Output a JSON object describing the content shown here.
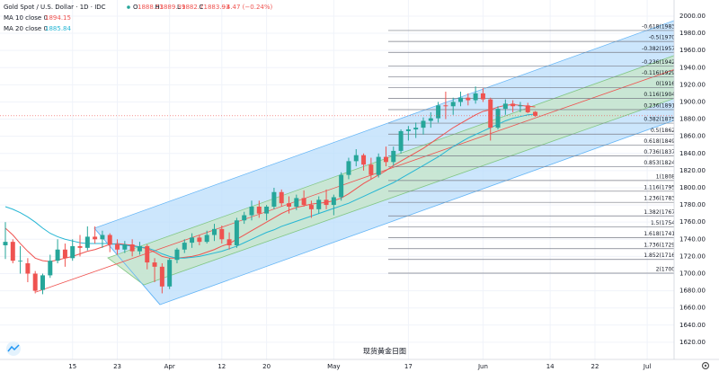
{
  "chart_data": {
    "type": "candlestick",
    "title": "Gold Spot / U.S. Dollar · 1D · IDC",
    "ohlc_labels": [
      "O",
      "H",
      "L",
      "C"
    ],
    "change": "−4.47 (−0.24%)",
    "up_color": "#26a69a",
    "down_color": "#ef5350",
    "ohlc": [
      [
        1733,
        1760,
        1717,
        1737
      ],
      [
        1737,
        1740,
        1712,
        1715
      ],
      [
        1715,
        1732,
        1700,
        1715
      ],
      [
        1712,
        1718,
        1690,
        1700
      ],
      [
        1700,
        1703,
        1677,
        1680
      ],
      [
        1681,
        1700,
        1676,
        1698
      ],
      [
        1698,
        1722,
        1695,
        1715
      ],
      [
        1715,
        1740,
        1712,
        1728
      ],
      [
        1728,
        1735,
        1708,
        1718
      ],
      [
        1718,
        1740,
        1715,
        1732
      ],
      [
        1732,
        1745,
        1720,
        1730
      ],
      [
        1730,
        1755,
        1727,
        1743
      ],
      [
        1743,
        1755,
        1735,
        1740
      ],
      [
        1740,
        1750,
        1730,
        1745
      ],
      [
        1745,
        1747,
        1725,
        1734
      ],
      [
        1734,
        1740,
        1722,
        1728
      ],
      [
        1728,
        1738,
        1724,
        1734
      ],
      [
        1734,
        1740,
        1720,
        1726
      ],
      [
        1726,
        1737,
        1722,
        1732
      ],
      [
        1732,
        1734,
        1705,
        1713
      ],
      [
        1713,
        1718,
        1690,
        1708
      ],
      [
        1708,
        1712,
        1677,
        1685
      ],
      [
        1685,
        1718,
        1682,
        1716
      ],
      [
        1716,
        1730,
        1712,
        1728
      ],
      [
        1728,
        1740,
        1724,
        1736
      ],
      [
        1736,
        1747,
        1730,
        1742
      ],
      [
        1742,
        1745,
        1733,
        1737
      ],
      [
        1737,
        1750,
        1735,
        1745
      ],
      [
        1745,
        1758,
        1738,
        1752
      ],
      [
        1752,
        1756,
        1735,
        1740
      ],
      [
        1740,
        1748,
        1728,
        1733
      ],
      [
        1733,
        1765,
        1730,
        1762
      ],
      [
        1762,
        1772,
        1758,
        1768
      ],
      [
        1768,
        1785,
        1762,
        1778
      ],
      [
        1778,
        1785,
        1765,
        1770
      ],
      [
        1770,
        1780,
        1762,
        1778
      ],
      [
        1778,
        1800,
        1775,
        1795
      ],
      [
        1795,
        1798,
        1778,
        1782
      ],
      [
        1782,
        1790,
        1770,
        1778
      ],
      [
        1778,
        1792,
        1774,
        1788
      ],
      [
        1788,
        1797,
        1778,
        1780
      ],
      [
        1780,
        1785,
        1765,
        1775
      ],
      [
        1775,
        1790,
        1770,
        1786
      ],
      [
        1786,
        1798,
        1775,
        1780
      ],
      [
        1780,
        1792,
        1768,
        1789
      ],
      [
        1789,
        1818,
        1785,
        1815
      ],
      [
        1815,
        1835,
        1810,
        1831
      ],
      [
        1831,
        1845,
        1825,
        1838
      ],
      [
        1838,
        1840,
        1820,
        1827
      ],
      [
        1827,
        1835,
        1810,
        1815
      ],
      [
        1815,
        1840,
        1812,
        1836
      ],
      [
        1836,
        1848,
        1825,
        1830
      ],
      [
        1830,
        1848,
        1826,
        1843
      ],
      [
        1843,
        1868,
        1840,
        1866
      ],
      [
        1866,
        1872,
        1855,
        1868
      ],
      [
        1868,
        1876,
        1858,
        1870
      ],
      [
        1870,
        1882,
        1862,
        1878
      ],
      [
        1878,
        1888,
        1870,
        1881
      ],
      [
        1881,
        1900,
        1876,
        1896
      ],
      [
        1896,
        1912,
        1880,
        1895
      ],
      [
        1895,
        1905,
        1885,
        1900
      ],
      [
        1900,
        1912,
        1895,
        1905
      ],
      [
        1905,
        1910,
        1896,
        1902
      ],
      [
        1902,
        1918,
        1898,
        1910
      ],
      [
        1910,
        1916,
        1900,
        1903
      ],
      [
        1903,
        1905,
        1855,
        1870
      ],
      [
        1870,
        1895,
        1868,
        1892
      ],
      [
        1892,
        1903,
        1885,
        1898
      ],
      [
        1898,
        1902,
        1888,
        1895
      ],
      [
        1895,
        1900,
        1888,
        1896
      ],
      [
        1896,
        1899,
        1887,
        1888
      ],
      [
        1888.53,
        1889.39,
        1882.7,
        1883.93
      ]
    ],
    "series": [
      {
        "name": "MA 10 close 0",
        "color": "#ef5350",
        "values": [
          1753,
          1745,
          1735,
          1726,
          1718,
          1715,
          1714,
          1716,
          1718,
          1720,
          1723,
          1726,
          1728,
          1731,
          1734,
          1735,
          1734,
          1733,
          1731,
          1729,
          1725,
          1720,
          1718,
          1718,
          1719,
          1720,
          1722,
          1725,
          1728,
          1732,
          1735,
          1740,
          1745,
          1750,
          1755,
          1760,
          1765,
          1770,
          1774,
          1777,
          1779,
          1781,
          1782,
          1783,
          1785,
          1788,
          1793,
          1799,
          1805,
          1810,
          1815,
          1820,
          1826,
          1831,
          1836,
          1841,
          1846,
          1852,
          1858,
          1864,
          1870,
          1875,
          1880,
          1885,
          1889,
          1891,
          1894,
          1896,
          1897,
          1896,
          1895,
          1894.15
        ]
      },
      {
        "name": "MA 20 close 0",
        "color": "#26b6d4",
        "values": [
          1778,
          1775,
          1771,
          1766,
          1760,
          1753,
          1747,
          1743,
          1740,
          1738,
          1736,
          1735,
          1735,
          1735,
          1735,
          1734,
          1733,
          1732,
          1731,
          1730,
          1727,
          1723,
          1720,
          1718,
          1718,
          1719,
          1720,
          1722,
          1724,
          1726,
          1729,
          1732,
          1736,
          1740,
          1744,
          1748,
          1751,
          1755,
          1758,
          1761,
          1764,
          1767,
          1770,
          1773,
          1776,
          1779,
          1782,
          1786,
          1790,
          1794,
          1798,
          1802,
          1806,
          1811,
          1816,
          1821,
          1826,
          1831,
          1836,
          1842,
          1848,
          1853,
          1858,
          1862,
          1866,
          1870,
          1874,
          1878,
          1881,
          1883,
          1885,
          1885.84
        ]
      }
    ],
    "xlim": [
      -0.72,
      89.6
    ],
    "xticks": [
      {
        "value": 9,
        "label": "15"
      },
      {
        "value": 15,
        "label": "23"
      },
      {
        "value": 22,
        "label": "Apr"
      },
      {
        "value": 29,
        "label": "12"
      },
      {
        "value": 35,
        "label": "20"
      },
      {
        "value": 44,
        "label": "May"
      },
      {
        "value": 54,
        "label": "17"
      },
      {
        "value": 64,
        "label": "Jun"
      },
      {
        "value": 73,
        "label": "14"
      },
      {
        "value": 79,
        "label": "22"
      },
      {
        "value": 86,
        "label": "Jul"
      }
    ],
    "ylim": [
      1600,
      2018.8
    ],
    "yticks": [
      {
        "value": 1620,
        "label": "1620.00"
      },
      {
        "value": 1640,
        "label": "1640.00"
      },
      {
        "value": 1660,
        "label": "1660.00"
      },
      {
        "value": 1680,
        "label": "1680.00"
      },
      {
        "value": 1700,
        "label": "1700.00"
      },
      {
        "value": 1720,
        "label": "1720.00"
      },
      {
        "value": 1740,
        "label": "1740.00"
      },
      {
        "value": 1760,
        "label": "1760.00"
      },
      {
        "value": 1780,
        "label": "1780.00"
      },
      {
        "value": 1800,
        "label": "1800.00"
      },
      {
        "value": 1820,
        "label": "1820.00"
      },
      {
        "value": 1840,
        "label": "1840.00"
      },
      {
        "value": 1860,
        "label": "1860.00"
      },
      {
        "value": 1880,
        "label": "1880.00"
      },
      {
        "value": 1900,
        "label": "1900.00"
      },
      {
        "value": 1920,
        "label": "1920.00"
      },
      {
        "value": 1940,
        "label": "1940.00"
      },
      {
        "value": 1960,
        "label": "1960.00"
      },
      {
        "value": 1980,
        "label": "1980.00"
      },
      {
        "value": 2000,
        "label": "2000.00"
      }
    ],
    "fib_levels": [
      {
        "value": 1983.29,
        "label": "-0.618(1983.29)"
      },
      {
        "value": 1970.54,
        "label": "-0.5(1970.54)"
      },
      {
        "value": 1957.79,
        "label": "-0.382(1957.79)"
      },
      {
        "value": 1942.02,
        "label": "-0.236(1942.02)"
      },
      {
        "value": 1929.06,
        "label": "-0.116(1929.06)"
      },
      {
        "value": 1916.53,
        "label": "0(1916.53)"
      },
      {
        "value": 1904.0,
        "label": "0.116(1904.00)"
      },
      {
        "value": 1891.04,
        "label": "0.236(1891.04)"
      },
      {
        "value": 1875.27,
        "label": "0.382(1875.27)"
      },
      {
        "value": 1862.52,
        "label": "0.5(1862.52)"
      },
      {
        "value": 1849.77,
        "label": "0.618(1849.77)"
      },
      {
        "value": 1837.03,
        "label": "0.736(1837.03)"
      },
      {
        "value": 1824.39,
        "label": "0.853(1824.39)"
      },
      {
        "value": 1808.51,
        "label": "1(1808.51)"
      },
      {
        "value": 1795.98,
        "label": "1.116(1795.98)"
      },
      {
        "value": 1783.02,
        "label": "1.236(1783.02)"
      },
      {
        "value": 1767.25,
        "label": "1.382(1767.25)"
      },
      {
        "value": 1754.5,
        "label": "1.5(1754.50)"
      },
      {
        "value": 1741.75,
        "label": "1.618(1741.75)"
      },
      {
        "value": 1729.01,
        "label": "1.736(1729.01)"
      },
      {
        "value": 1716.48,
        "label": "1.852(1716.48)"
      },
      {
        "value": 1700.49,
        "label": "2(1700.49)"
      }
    ],
    "caption": "现货黄金日图"
  }
}
